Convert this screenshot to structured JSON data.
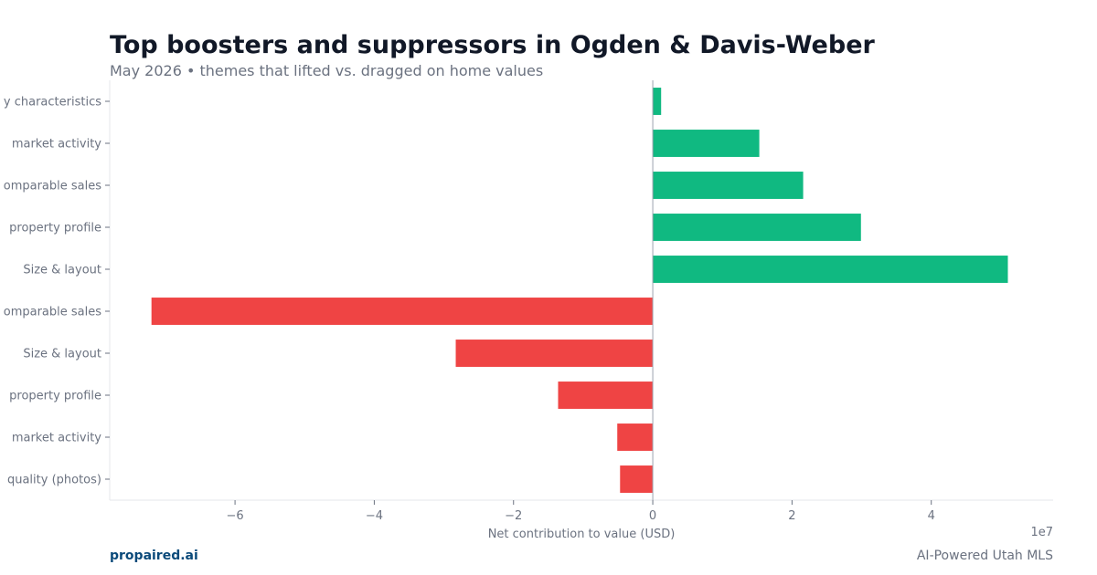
{
  "header": {
    "title": "Top boosters and suppressors in Ogden & Davis-Weber",
    "subtitle": "May 2026 • themes that lifted vs. dragged on home values"
  },
  "footer": {
    "brand": "propaired.ai",
    "tagline": "AI-Powered Utah MLS"
  },
  "colors": {
    "positive": "#10b981",
    "negative": "#ef4444",
    "text": "#6b7280",
    "title": "#111827",
    "brand": "#0b4a7a"
  },
  "chart_data": {
    "type": "bar",
    "orientation": "horizontal",
    "categories": [
      "y characteristics",
      "market activity",
      "omparable sales",
      "property profile",
      "Size & layout",
      "omparable sales",
      "Size & layout",
      "property profile",
      "market activity",
      "quality (photos)"
    ],
    "values": [
      1200000,
      15300000,
      21600000,
      29900000,
      51000000,
      -72000000,
      -28300000,
      -13600000,
      -5100000,
      -4700000
    ],
    "xlabel": "Net contribution to value (USD)",
    "ylabel": "",
    "xlim": [
      -78000000,
      57500000
    ],
    "xticks": [
      -60000000,
      -40000000,
      -20000000,
      0,
      20000000,
      40000000
    ],
    "xtick_labels": [
      "−6",
      "−4",
      "−2",
      "0",
      "2",
      "4"
    ],
    "x_offset_label": "1e7",
    "grid": false,
    "legend": "none"
  }
}
